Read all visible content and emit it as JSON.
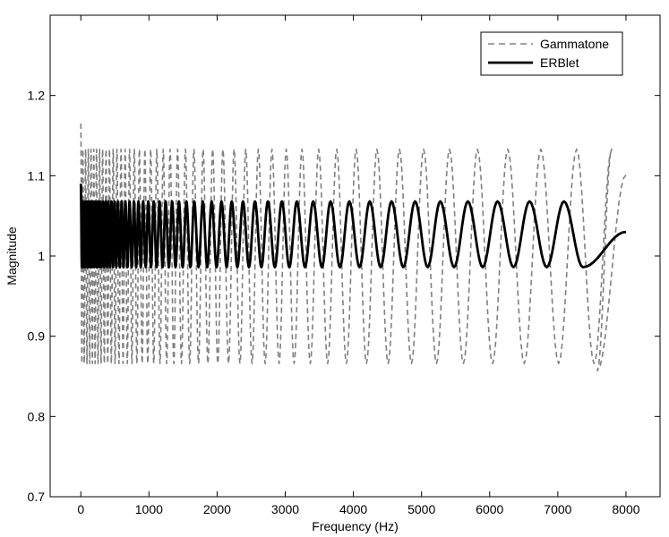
{
  "chart_data": {
    "type": "line",
    "title": "",
    "xlabel": "Frequency (Hz)",
    "ylabel": "Magnitude",
    "xlim": [
      -450,
      8500
    ],
    "ylim": [
      0.7,
      1.3
    ],
    "xticks": [
      0,
      1000,
      2000,
      3000,
      4000,
      5000,
      6000,
      7000,
      8000
    ],
    "yticks": [
      0.7,
      0.8,
      0.9,
      1.0,
      1.1,
      1.2
    ],
    "xtick_labels": [
      "0",
      "1000",
      "2000",
      "3000",
      "4000",
      "5000",
      "6000",
      "7000",
      "8000"
    ],
    "ytick_labels": [
      "0.7",
      "0.8",
      "0.9",
      "1",
      "1.1",
      "1.2"
    ],
    "grid": false,
    "legend_position": "top-right",
    "series": [
      {
        "name": "Gammatone",
        "style": "dashed",
        "color": "#808080",
        "peaks_x": [
          0,
          30,
          70,
          110,
          150,
          190,
          230,
          275,
          320,
          370,
          420,
          475,
          530,
          590,
          650,
          715,
          785,
          860,
          940,
          1025,
          1115,
          1210,
          1310,
          1420,
          1535,
          1660,
          1795,
          1935,
          2085,
          2250,
          2420,
          2605,
          2805,
          3015,
          3245,
          3490,
          3755,
          4040,
          4345,
          4675,
          5030,
          5410,
          5820,
          6265,
          6750,
          7275,
          7790
        ],
        "peak_y": 1.133,
        "trough_y": 0.866,
        "start_y": 1.165,
        "last_trough": [
          7580,
          0.857
        ],
        "end": [
          8000,
          1.101
        ]
      },
      {
        "name": "ERBlet",
        "style": "solid",
        "color": "#000000",
        "peaks_x": [
          0,
          30,
          60,
          90,
          120,
          150,
          180,
          215,
          250,
          285,
          325,
          365,
          405,
          450,
          495,
          545,
          600,
          655,
          715,
          780,
          845,
          915,
          990,
          1070,
          1155,
          1245,
          1340,
          1440,
          1550,
          1665,
          1790,
          1920,
          2065,
          2215,
          2380,
          2555,
          2745,
          2950,
          3170,
          3410,
          3665,
          3940,
          4240,
          4560,
          4905,
          5275,
          5680,
          6115,
          6585,
          7090
        ],
        "peak_y": 1.068,
        "trough_y": 0.986,
        "start_y": 1.09,
        "end": [
          8000,
          1.03
        ]
      }
    ]
  }
}
